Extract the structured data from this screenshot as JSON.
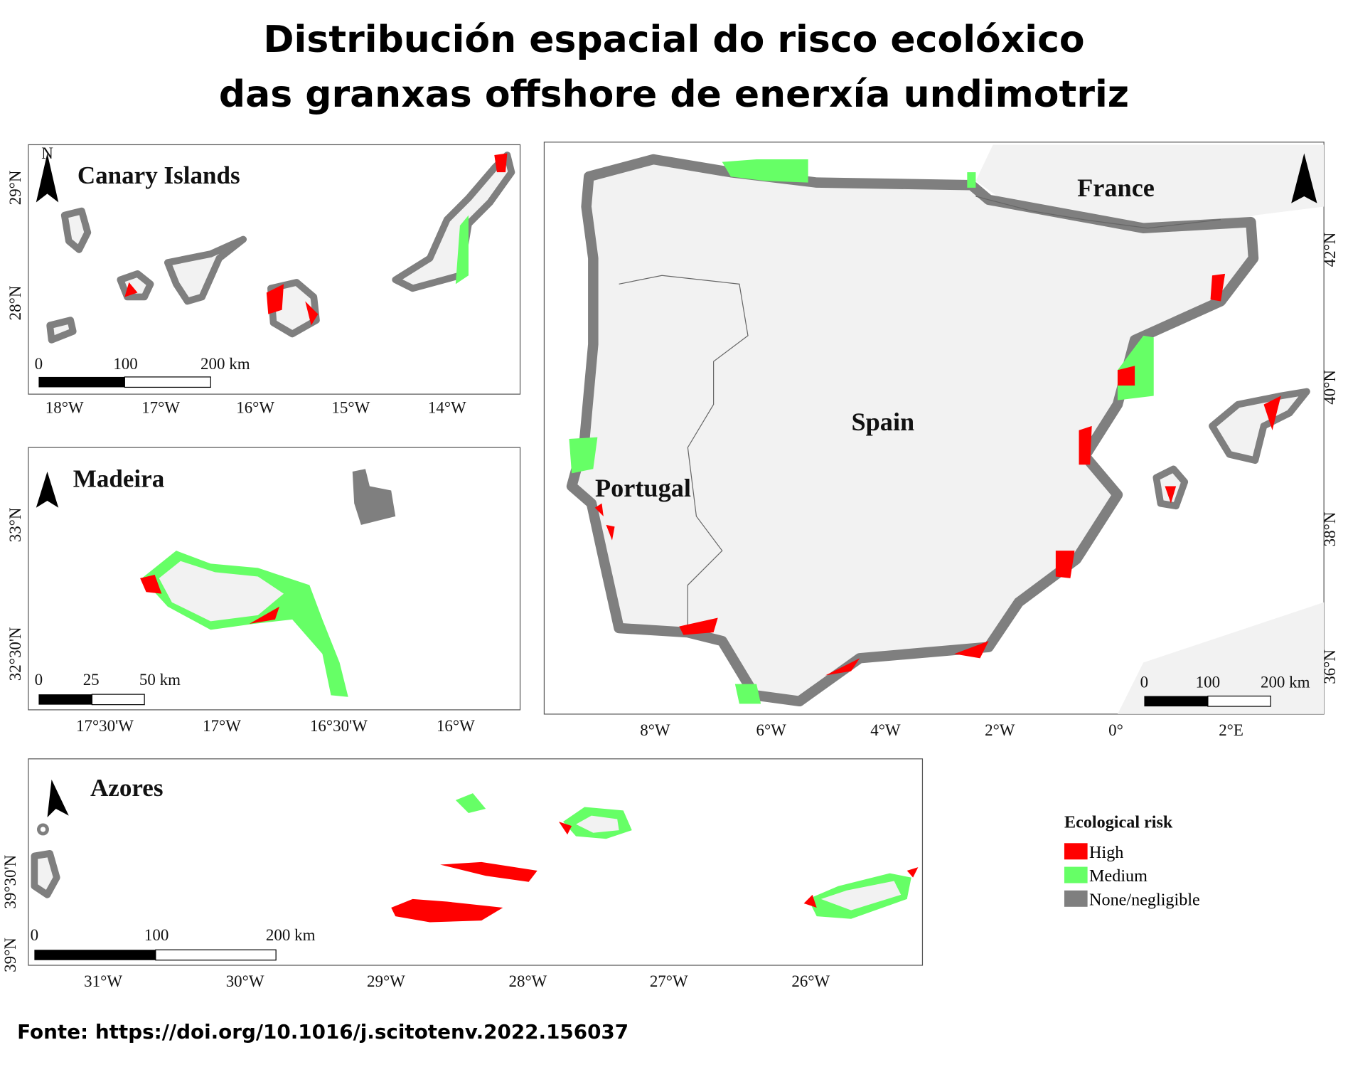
{
  "title": [
    "Distribución espacial do risco ecolóxico",
    "das granxas offshore de enerxía undimotriz"
  ],
  "panels": [
    {
      "name": "Canary Islands",
      "north": "N",
      "lon_labels": [
        "18°W",
        "17°W",
        "16°W",
        "15°W",
        "14°W"
      ],
      "lat_labels": [
        "29°N",
        "28°N"
      ],
      "scale_labels": [
        "0",
        "100",
        "200 km"
      ]
    },
    {
      "name": "Madeira",
      "lon_labels": [
        "17°30'W",
        "17°W",
        "16°30'W",
        "16°W"
      ],
      "lat_labels": [
        "33°N",
        "32°30'N"
      ],
      "scale_labels": [
        "0",
        "25",
        "50 km"
      ]
    },
    {
      "name": "Azores",
      "lon_labels": [
        "31°W",
        "30°W",
        "29°W",
        "28°W",
        "27°W",
        "26°W"
      ],
      "lat_labels": [
        "39°30'N",
        "39°N"
      ],
      "scale_labels": [
        "0",
        "100",
        "200 km"
      ]
    }
  ],
  "main": {
    "country_labels": [
      "France",
      "Spain",
      "Portugal"
    ],
    "lon_labels": [
      "8°W",
      "6°W",
      "4°W",
      "2°W",
      "0°",
      "2°E"
    ],
    "lat_labels": [
      "42°N",
      "40°N",
      "38°N",
      "36°N"
    ],
    "scale_labels": [
      "0",
      "100",
      "200 km"
    ]
  },
  "legend": {
    "title": "Ecological risk",
    "items": [
      {
        "label": "High",
        "color": "#ff0000"
      },
      {
        "label": "Medium",
        "color": "#66ff66"
      },
      {
        "label": "None/negligible",
        "color": "#7f7f7f"
      }
    ]
  },
  "source": "Fonte: https://doi.org/10.1016/j.scitotenv.2022.156037"
}
